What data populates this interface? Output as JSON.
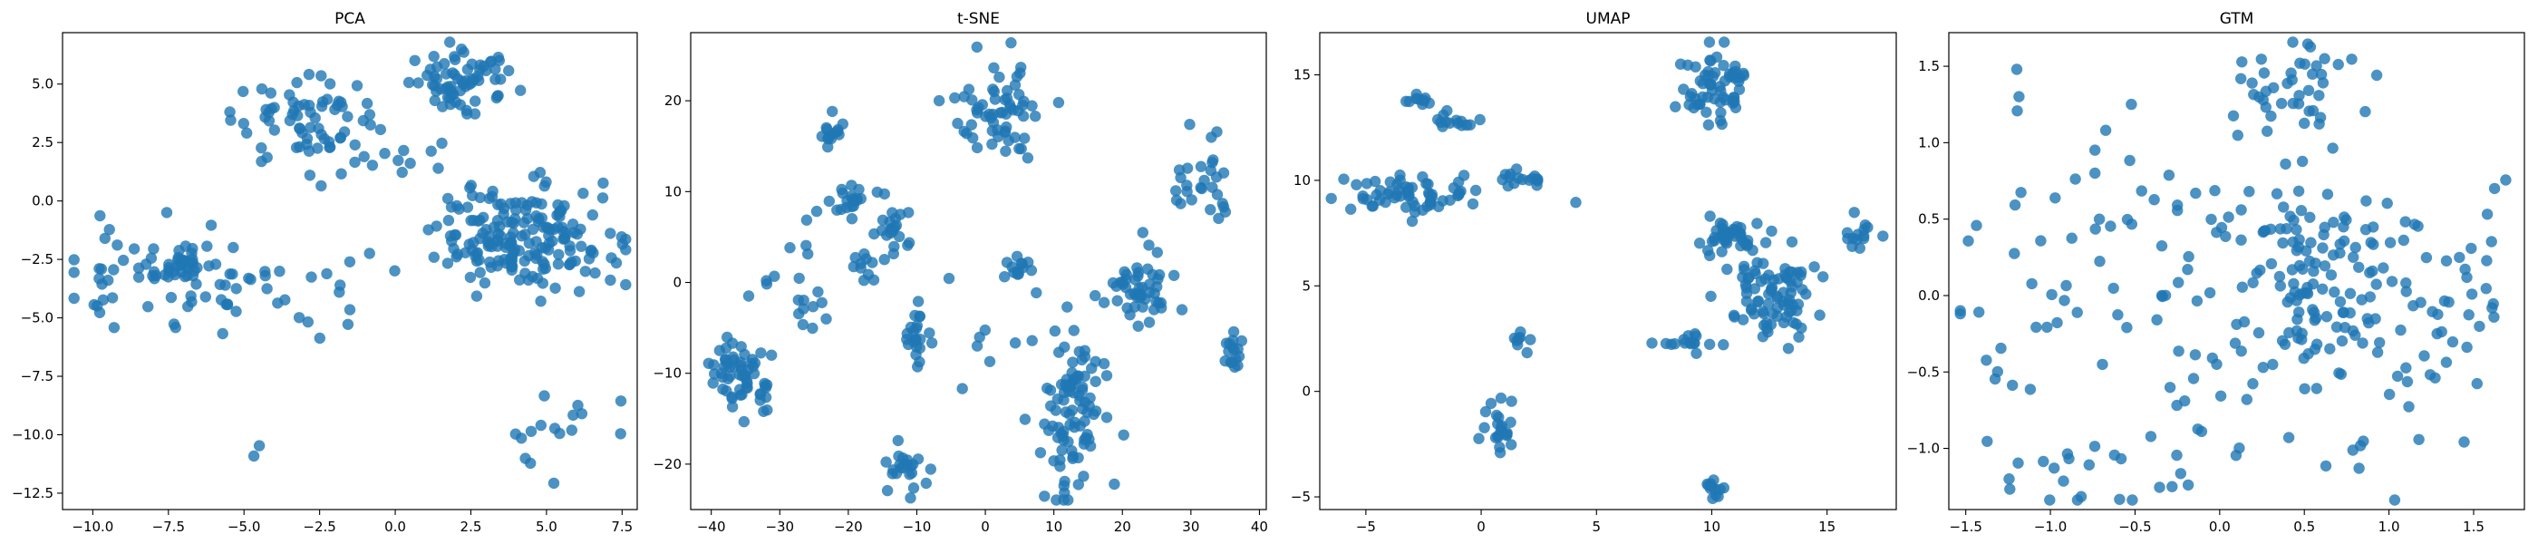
{
  "chart_data": [
    {
      "type": "scatter",
      "title": "PCA",
      "xlim": [
        -11,
        8
      ],
      "ylim": [
        -13.2,
        7.2
      ],
      "xticks": [
        -10.0,
        -7.5,
        -5.0,
        -2.5,
        0.0,
        2.5,
        5.0,
        7.5
      ],
      "yticks": [
        -12.5,
        -10.0,
        -7.5,
        -5.0,
        -2.5,
        0.0,
        2.5,
        5.0
      ],
      "tick_format": "1dp",
      "marker_color": "#1f77b4",
      "clusters": [
        {
          "cx": -4.0,
          "cy": -3.8,
          "sx": 1.6,
          "sy": 1.0,
          "n": 26
        },
        {
          "cx": -6.9,
          "cy": -2.8,
          "sx": 0.9,
          "sy": 0.6,
          "n": 46
        },
        {
          "cx": -8.4,
          "cy": -3.1,
          "sx": 1.1,
          "sy": 1.6,
          "n": 22
        },
        {
          "cx": -9.6,
          "cy": -2.8,
          "sx": 0.8,
          "sy": 1.4,
          "n": 12
        },
        {
          "cx": -3.0,
          "cy": 3.4,
          "sx": 1.2,
          "sy": 0.9,
          "n": 70
        },
        {
          "cx": 2.3,
          "cy": 5.1,
          "sx": 0.9,
          "sy": 0.6,
          "n": 70
        },
        {
          "cx": 4.3,
          "cy": -1.6,
          "sx": 1.5,
          "sy": 1.1,
          "n": 190
        },
        {
          "cx": 5.3,
          "cy": -9.8,
          "sx": 0.8,
          "sy": 1.1,
          "n": 16
        },
        {
          "cx": -4.7,
          "cy": -10.8,
          "sx": 0.3,
          "sy": 0.3,
          "n": 2
        },
        {
          "cx": -0.5,
          "cy": 1.8,
          "sx": 1.3,
          "sy": 0.7,
          "n": 10
        }
      ]
    },
    {
      "type": "scatter",
      "title": "t-SNE",
      "xlim": [
        -43,
        41
      ],
      "ylim": [
        -25,
        27.5
      ],
      "xticks": [
        -40,
        -30,
        -20,
        -10,
        0,
        10,
        20,
        30,
        40
      ],
      "yticks": [
        -20,
        -10,
        0,
        10,
        20
      ],
      "tick_format": "int",
      "marker_color": "#1f77b4",
      "clusters": [
        {
          "cx": -36,
          "cy": -10,
          "sx": 2.2,
          "sy": 2.0,
          "n": 60
        },
        {
          "cx": -22,
          "cy": 16.5,
          "sx": 1.2,
          "sy": 0.9,
          "n": 14
        },
        {
          "cx": -20,
          "cy": 9,
          "sx": 1.6,
          "sy": 0.9,
          "n": 20
        },
        {
          "cx": -18,
          "cy": 1.8,
          "sx": 0.8,
          "sy": 0.9,
          "n": 10
        },
        {
          "cx": -25,
          "cy": -3,
          "sx": 1.5,
          "sy": 1.0,
          "n": 10
        },
        {
          "cx": -13,
          "cy": 6,
          "sx": 1.3,
          "sy": 1.6,
          "n": 22
        },
        {
          "cx": -10,
          "cy": -6,
          "sx": 0.9,
          "sy": 1.6,
          "n": 22
        },
        {
          "cx": -12,
          "cy": -20.5,
          "sx": 2.0,
          "sy": 1.4,
          "n": 22
        },
        {
          "cx": 2.5,
          "cy": 19,
          "sx": 3.0,
          "sy": 3.0,
          "n": 62
        },
        {
          "cx": 5,
          "cy": 2,
          "sx": 1.1,
          "sy": 1.0,
          "n": 12
        },
        {
          "cx": 13,
          "cy": -14,
          "sx": 2.6,
          "sy": 4.6,
          "n": 95
        },
        {
          "cx": 23,
          "cy": -1,
          "sx": 2.5,
          "sy": 2.2,
          "n": 52
        },
        {
          "cx": 31,
          "cy": 11,
          "sx": 1.8,
          "sy": 2.6,
          "n": 28
        },
        {
          "cx": 36,
          "cy": -8,
          "sx": 0.8,
          "sy": 1.0,
          "n": 16
        },
        {
          "cx": -30,
          "cy": 2,
          "sx": 3.0,
          "sy": 3.0,
          "n": 10
        },
        {
          "cx": 0,
          "cy": -5,
          "sx": 5.0,
          "sy": 6.0,
          "n": 10
        }
      ]
    },
    {
      "type": "scatter",
      "title": "UMAP",
      "xlim": [
        -7,
        18
      ],
      "ylim": [
        -5.6,
        17
      ],
      "xticks": [
        -5,
        0,
        5,
        10,
        15
      ],
      "yticks": [
        -5,
        0,
        5,
        10,
        15
      ],
      "tick_format": "int",
      "marker_color": "#1f77b4",
      "clusters": [
        {
          "cx": -3.0,
          "cy": 9.3,
          "sx": 1.6,
          "sy": 0.55,
          "n": 65
        },
        {
          "cx": -2.6,
          "cy": 13.8,
          "sx": 0.25,
          "sy": 0.2,
          "n": 10
        },
        {
          "cx": -1.2,
          "cy": 12.8,
          "sx": 0.6,
          "sy": 0.35,
          "n": 14
        },
        {
          "cx": 1.8,
          "cy": 10.1,
          "sx": 0.5,
          "sy": 0.25,
          "n": 14
        },
        {
          "cx": 0.8,
          "cy": -1.9,
          "sx": 0.5,
          "sy": 0.6,
          "n": 22
        },
        {
          "cx": 1.7,
          "cy": 2.3,
          "sx": 0.2,
          "sy": 0.35,
          "n": 8
        },
        {
          "cx": 10.0,
          "cy": 14.6,
          "sx": 0.75,
          "sy": 0.9,
          "n": 62
        },
        {
          "cx": 10.8,
          "cy": 7.3,
          "sx": 0.6,
          "sy": 0.5,
          "n": 42
        },
        {
          "cx": 12.7,
          "cy": 4.6,
          "sx": 0.9,
          "sy": 0.9,
          "n": 82
        },
        {
          "cx": 9.1,
          "cy": 2.4,
          "sx": 0.6,
          "sy": 0.15,
          "n": 16
        },
        {
          "cx": 16.5,
          "cy": 7.5,
          "sx": 0.35,
          "sy": 0.4,
          "n": 14
        },
        {
          "cx": 10.0,
          "cy": -4.7,
          "sx": 0.25,
          "sy": 0.3,
          "n": 12
        }
      ]
    },
    {
      "type": "scatter",
      "title": "GTM",
      "xlim": [
        -1.6,
        1.8
      ],
      "ylim": [
        -1.4,
        1.72
      ],
      "xticks": [
        -1.5,
        -1.0,
        -0.5,
        0.0,
        0.5,
        1.0,
        1.5
      ],
      "yticks": [
        -1.0,
        -0.5,
        0.0,
        0.5,
        1.0,
        1.5
      ],
      "tick_format": "1dp",
      "marker_color": "#1f77b4",
      "clusters": [
        {
          "cx": 0.45,
          "cy": 1.35,
          "sx": 0.2,
          "sy": 0.15,
          "n": 42
        },
        {
          "cx": -0.7,
          "cy": 0.25,
          "sx": 0.5,
          "sy": 0.6,
          "n": 50
        },
        {
          "cx": 0.0,
          "cy": 0.5,
          "sx": 0.3,
          "sy": 0.15,
          "n": 20
        },
        {
          "cx": 0.55,
          "cy": 0.0,
          "sx": 0.28,
          "sy": 0.25,
          "n": 90
        },
        {
          "cx": 0.7,
          "cy": 0.45,
          "sx": 0.3,
          "sy": 0.15,
          "n": 24
        },
        {
          "cx": 1.4,
          "cy": 0.0,
          "sx": 0.2,
          "sy": 0.3,
          "n": 26
        },
        {
          "cx": 0.1,
          "cy": -0.55,
          "sx": 0.5,
          "sy": 0.12,
          "n": 16
        },
        {
          "cx": -0.9,
          "cy": -1.2,
          "sx": 0.3,
          "sy": 0.15,
          "n": 16
        },
        {
          "cx": 1.1,
          "cy": -0.7,
          "sx": 0.3,
          "sy": 0.3,
          "n": 12
        },
        {
          "cx": -1.4,
          "cy": -0.3,
          "sx": 0.1,
          "sy": 0.2,
          "n": 6
        },
        {
          "cx": 0.3,
          "cy": -1.1,
          "sx": 0.3,
          "sy": 0.15,
          "n": 10
        },
        {
          "cx": 0.0,
          "cy": 0.0,
          "sx": 0.9,
          "sy": 0.8,
          "n": 20
        }
      ]
    }
  ]
}
